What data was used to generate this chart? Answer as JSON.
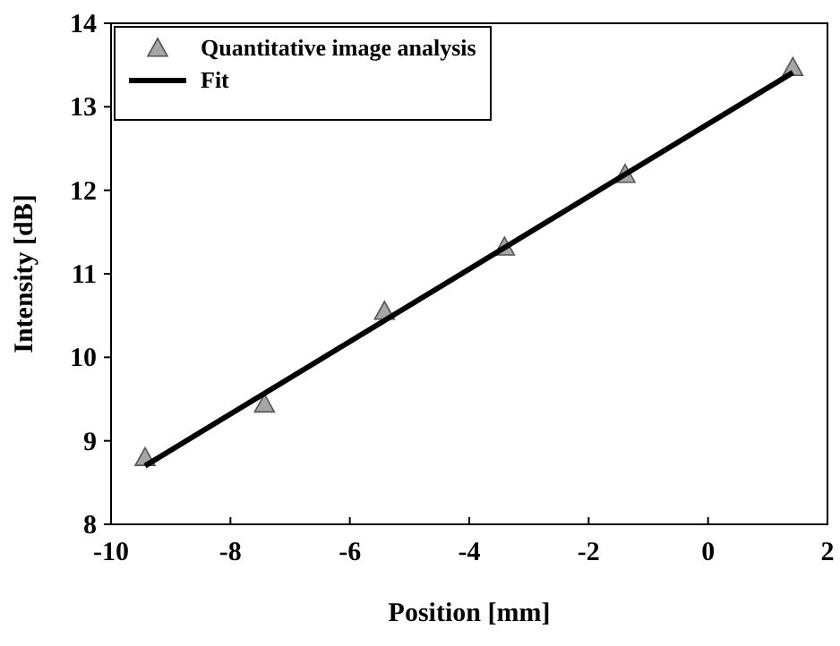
{
  "chart_data": {
    "type": "scatter",
    "xlabel": "Position [mm]",
    "ylabel": "Intensity [dB]",
    "xlim": [
      -10,
      2
    ],
    "xticks": [
      -10,
      -8,
      -6,
      -4,
      -2,
      0,
      2
    ],
    "ylim": [
      8,
      14
    ],
    "yticks": [
      8,
      9,
      10,
      11,
      12,
      13,
      14
    ],
    "grid": false,
    "legend": "top left",
    "series": [
      {
        "name": "Quantitative image analysis",
        "marker": "triangle",
        "color": "#a6a6a6",
        "x": [
          -9.43,
          -7.43,
          -5.42,
          -3.41,
          -1.39,
          1.42
        ],
        "values": [
          8.8,
          9.44,
          10.55,
          11.32,
          12.19,
          13.47
        ]
      },
      {
        "name": "Fit",
        "type": "line",
        "marker": "none",
        "line_style": "solid",
        "color": "#000000",
        "x": [
          -9.43,
          1.42
        ],
        "values": [
          8.7,
          13.41
        ]
      }
    ]
  }
}
